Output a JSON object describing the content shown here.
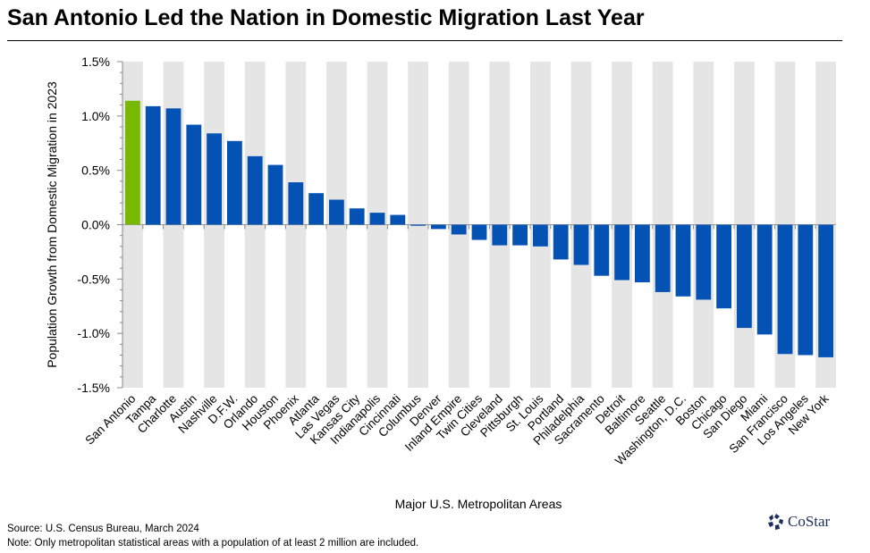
{
  "title": "San Antonio Led the Nation in Domestic Migration Last Year",
  "source": "Source: U.S. Census Bureau, March 2024",
  "note": "Note: Only metropolitan statistical areas with a population of at least 2 million are included.",
  "logo": "CoStar",
  "colors": {
    "highlight": "#76b900",
    "bar": "#0552b5",
    "band": "#e6e5e6"
  },
  "chart_data": {
    "type": "bar",
    "title": "San Antonio Led the Nation in Domestic Migration Last Year",
    "xlabel": "Major U.S. Metropolitan Areas",
    "ylabel": "Population Growth from Domestic Migration  in 2023",
    "ylim": [
      -1.5,
      1.5
    ],
    "yticks": [
      "1.5%",
      "1.0%",
      "0.5%",
      "0.0%",
      "-0.5%",
      "-1.0%",
      "-1.5%"
    ],
    "highlight": "San Antonio",
    "categories": [
      "San Antonio",
      "Tampa",
      "Charlotte",
      "Austin",
      "Nashville",
      "D.F.W.",
      "Orlando",
      "Houston",
      "Phoenix",
      "Atlanta",
      "Las Vegas",
      "Kansas City",
      "Indianapolis",
      "Cincinnati",
      "Columbus",
      "Denver",
      "Inland Empire",
      "Twin Cities",
      "Cleveland",
      "Pittsburgh",
      "St. Louis",
      "Portland",
      "Philadelphia",
      "Sacramento",
      "Detroit",
      "Baltimore",
      "Seattle",
      "Washington, D.C.",
      "Boston",
      "Chicago",
      "San Diego",
      "Miami",
      "San Francisco",
      "Los Angeles",
      "New York"
    ],
    "values": [
      1.14,
      1.09,
      1.07,
      0.92,
      0.84,
      0.77,
      0.63,
      0.55,
      0.39,
      0.29,
      0.23,
      0.15,
      0.11,
      0.09,
      -0.01,
      -0.04,
      -0.09,
      -0.14,
      -0.19,
      -0.19,
      -0.2,
      -0.32,
      -0.37,
      -0.47,
      -0.51,
      -0.53,
      -0.62,
      -0.66,
      -0.69,
      -0.77,
      -0.95,
      -1.01,
      -1.19,
      -1.2,
      -1.22
    ]
  }
}
